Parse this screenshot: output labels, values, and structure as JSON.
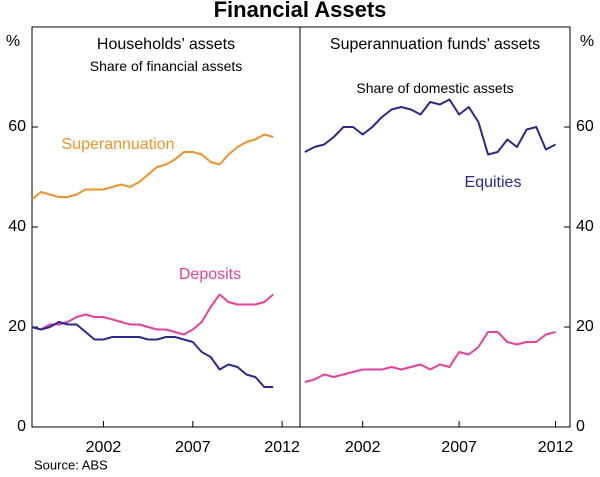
{
  "title": "Financial Assets",
  "source": "Source: ABS",
  "chart_data": [
    {
      "type": "line",
      "title": "Households’ assets",
      "subtitle": "Share of financial assets",
      "y_label": "%",
      "xlim": [
        1998,
        2013
      ],
      "xticks": [
        2002,
        2007,
        2012
      ],
      "ylim": [
        0,
        80
      ],
      "yticks": [
        0,
        20,
        40,
        60
      ],
      "x": [
        1998,
        1998.5,
        1999,
        1999.5,
        2000,
        2000.5,
        2001,
        2001.5,
        2002,
        2002.5,
        2003,
        2003.5,
        2004,
        2004.5,
        2005,
        2005.5,
        2006,
        2006.5,
        2007,
        2007.5,
        2008,
        2008.5,
        2009,
        2009.5,
        2010,
        2010.5,
        2011,
        2011.5
      ],
      "series": [
        {
          "name": "Superannuation",
          "color": "#f0922b",
          "values": [
            45.5,
            47,
            46.5,
            46,
            46,
            46.5,
            47.5,
            47.5,
            47.5,
            48,
            48.5,
            48,
            49,
            50.5,
            52,
            52.5,
            53.5,
            55,
            55,
            54.5,
            53,
            52.5,
            54.5,
            56,
            57,
            57.5,
            58.5,
            58
          ]
        },
        {
          "name": "Deposits",
          "color": "#e6409b",
          "values": [
            20,
            19.5,
            20.5,
            20.5,
            21,
            22,
            22.5,
            22,
            22,
            21.5,
            21,
            20.5,
            20.5,
            20,
            19.5,
            19.5,
            19,
            18.5,
            19.5,
            21,
            24,
            26.5,
            25,
            24.5,
            24.5,
            24.5,
            25,
            26.5
          ]
        },
        {
          "color": "#2b2a8c",
          "values": [
            20,
            19.5,
            20,
            21,
            20.5,
            20.5,
            19,
            17.5,
            17.5,
            18,
            18,
            18,
            18,
            17.5,
            17.5,
            18,
            18,
            17.5,
            17,
            15,
            14,
            11.5,
            12.5,
            12,
            10.5,
            10,
            8,
            8
          ]
        }
      ]
    },
    {
      "type": "line",
      "title": "Superannuation funds’ assets",
      "subtitle": "Share of domestic assets",
      "y_label": "%",
      "xlim": [
        1998.75,
        2012.75
      ],
      "xticks": [
        2002,
        2007,
        2012
      ],
      "ylim": [
        0,
        80
      ],
      "yticks": [
        0,
        20,
        40,
        60
      ],
      "x": [
        1999,
        1999.5,
        2000,
        2000.5,
        2001,
        2001.5,
        2002,
        2002.5,
        2003,
        2003.5,
        2004,
        2004.5,
        2005,
        2005.5,
        2006,
        2006.5,
        2007,
        2007.5,
        2008,
        2008.5,
        2009,
        2009.5,
        2010,
        2010.5,
        2011,
        2011.5,
        2012
      ],
      "series": [
        {
          "name": "Equities",
          "color": "#2b2a8c",
          "values": [
            55,
            56,
            56.5,
            58,
            60,
            60,
            58.5,
            60,
            62,
            63.5,
            64,
            63.5,
            62.5,
            65,
            64.5,
            65.5,
            62.5,
            64,
            61,
            54.5,
            55,
            57.5,
            56,
            59.5,
            60,
            55.5,
            56.5
          ]
        },
        {
          "color": "#e6409b",
          "values": [
            9,
            9.5,
            10.5,
            10,
            10.5,
            11,
            11.5,
            11.5,
            11.5,
            12,
            11.5,
            12,
            12.5,
            11.5,
            12.5,
            12,
            15,
            14.5,
            16,
            19,
            19,
            17,
            16.5,
            17,
            17,
            18.5,
            19
          ]
        }
      ]
    }
  ]
}
